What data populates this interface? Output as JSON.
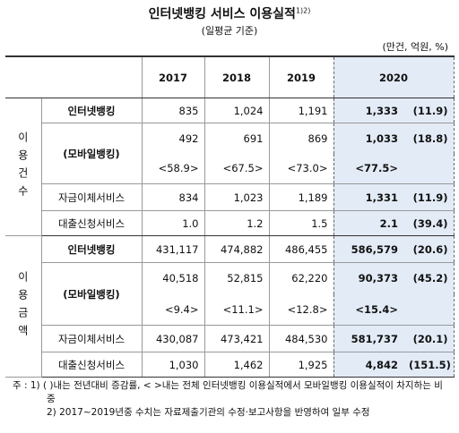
{
  "title": "인터넷뱅킹 서비스 이용실적",
  "title_note": "1)2)",
  "subtitle": "(일평균 기준)",
  "unit": "(만건, 억원, %)",
  "table": {
    "headers": [
      "2017",
      "2018",
      "2019",
      "2020"
    ],
    "groups": [
      {
        "label": "이용건수",
        "rows": [
          {
            "name": "인터넷뱅킹",
            "values": [
              "835",
              "1,024",
              "1,191",
              "1,333"
            ],
            "change": "(11.9)"
          },
          {
            "name": "(모바일뱅킹)",
            "values": [
              "492",
              "691",
              "869",
              "1,033"
            ],
            "change": "(18.8)",
            "share": [
              "<58.9>",
              "<67.5>",
              "<73.0>",
              "<77.5>"
            ]
          },
          {
            "name": "자금이체서비스",
            "values": [
              "834",
              "1,023",
              "1,189",
              "1,331"
            ],
            "change": "(11.9)"
          },
          {
            "name": "대출신청서비스",
            "values": [
              "1.0",
              "1.2",
              "1.5",
              "2.1"
            ],
            "change": "(39.4)"
          }
        ]
      },
      {
        "label": "이용금액",
        "rows": [
          {
            "name": "인터넷뱅킹",
            "values": [
              "431,117",
              "474,882",
              "486,455",
              "586,579"
            ],
            "change": "(20.6)"
          },
          {
            "name": "(모바일뱅킹)",
            "values": [
              "40,518",
              "52,815",
              "62,220",
              "90,373"
            ],
            "change": "(45.2)",
            "share": [
              "<9.4>",
              "<11.1>",
              "<12.8>",
              "<15.4>"
            ]
          },
          {
            "name": "자금이체서비스",
            "values": [
              "430,087",
              "473,421",
              "484,530",
              "581,737"
            ],
            "change": "(20.1)"
          },
          {
            "name": "대출신청서비스",
            "values": [
              "1,030",
              "1,462",
              "1,925",
              "4,842"
            ],
            "change": "(151.5)"
          }
        ]
      }
    ]
  },
  "notes": [
    "주 : 1) (  )내는 전년대비 증감률, < >내는 전체 인터넷뱅킹 이용실적에서 모바일뱅킹 이용실적이 차지하는 비중",
    "2) 2017~2019년중 수치는 자료제출기관의 수정·보고사항을 반영하여 일부 수정"
  ]
}
